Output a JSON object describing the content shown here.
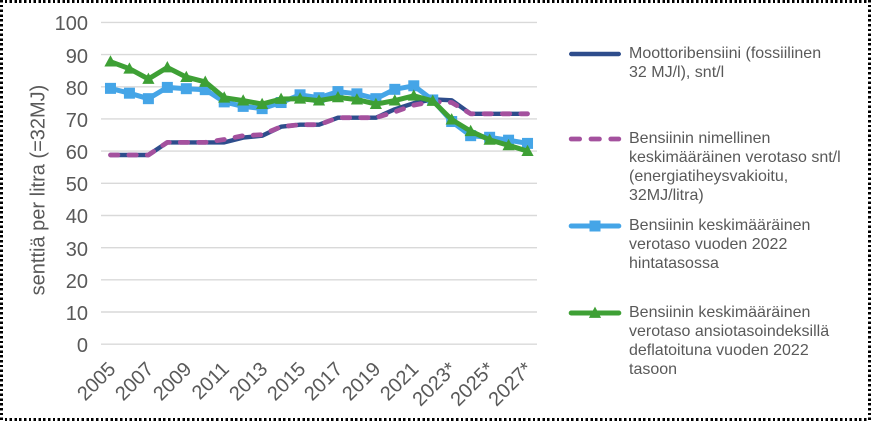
{
  "chart_data": {
    "type": "line",
    "title": "",
    "xlabel": "",
    "ylabel": "senttiä per litra (=32MJ)",
    "ylim": [
      0,
      100
    ],
    "yticks": [
      0,
      10,
      20,
      30,
      40,
      50,
      60,
      70,
      80,
      90,
      100
    ],
    "grid": "horizontal-gridlines",
    "legend_position": "right",
    "categories": [
      "2005",
      "2006",
      "2007",
      "2008",
      "2009",
      "2010",
      "2011",
      "2012",
      "2013",
      "2014",
      "2015",
      "2016",
      "2017",
      "2018",
      "2019",
      "2020",
      "2021",
      "2022",
      "2023",
      "2024",
      "2025",
      "2026",
      "2027"
    ],
    "x_tick_labels": [
      "2005",
      "2007",
      "2009",
      "2011",
      "2013",
      "2015",
      "2017",
      "2019",
      "2021",
      "2023*",
      "2025*",
      "2027*"
    ],
    "series": [
      {
        "name": "Moottoribensiini (fossiilinen 32 MJ/l), snt/l",
        "color": "#2E4D8C",
        "line_style": "solid",
        "marker": "none",
        "values": [
          58.8,
          58.8,
          58.8,
          62.7,
          62.7,
          62.7,
          62.7,
          64.2,
          64.8,
          67.6,
          68.2,
          68.2,
          70.4,
          70.4,
          70.4,
          73.0,
          74.9,
          76.1,
          75.8,
          71.6,
          71.6,
          71.6,
          71.6
        ]
      },
      {
        "name": "Bensiinin nimellinen keskimääräinen verotaso snt/l (energiatiheysvakioitu, 32MJ/litra)",
        "color": "#A4519E",
        "line_style": "dashed",
        "marker": "none",
        "values": [
          58.8,
          58.8,
          58.8,
          62.7,
          62.7,
          62.7,
          63.6,
          64.8,
          65.1,
          67.6,
          68.2,
          68.2,
          70.4,
          70.4,
          70.4,
          72.2,
          74.3,
          75.4,
          75.1,
          71.6,
          71.6,
          71.6,
          71.6
        ]
      },
      {
        "name": "Bensiinin keskimääräinen verotaso vuoden 2022 hintatasossa",
        "color": "#45A5E7",
        "line_style": "solid",
        "marker": "square",
        "values": [
          79.5,
          78.0,
          76.3,
          79.8,
          79.4,
          79.1,
          75.3,
          73.9,
          73.2,
          75.1,
          77.5,
          76.6,
          78.5,
          77.8,
          76.3,
          79.2,
          80.3,
          75.9,
          69.2,
          64.8,
          64.3,
          63.4,
          62.4
        ]
      },
      {
        "name": "Bensiinin keskimääräinen verotaso ansiotasoindeksillä deflatoituna vuoden 2022 tasoon",
        "color": "#3EA035",
        "line_style": "solid",
        "marker": "triangle",
        "values": [
          87.8,
          85.6,
          82.4,
          86.0,
          83.0,
          81.5,
          76.6,
          75.7,
          74.6,
          76.2,
          76.3,
          75.7,
          76.7,
          76.0,
          74.6,
          75.7,
          77.2,
          75.6,
          69.8,
          66.2,
          63.5,
          61.8,
          60.0
        ]
      }
    ]
  },
  "colors": {
    "text": "#595959",
    "gridline": "#D9D9D9",
    "background": "#FFFFFF",
    "selection_border": "#000000"
  }
}
